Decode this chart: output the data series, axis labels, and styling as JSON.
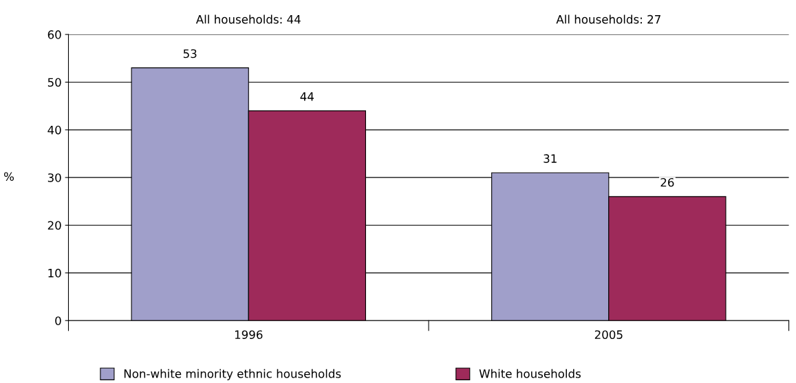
{
  "chart_data": {
    "type": "bar",
    "ylabel": "%",
    "categories": [
      "1996",
      "2005"
    ],
    "series": [
      {
        "name": "Non-white minority ethnic households",
        "color": "#a09fca",
        "values": [
          53,
          31
        ]
      },
      {
        "name": "White households",
        "color": "#9e2a5a",
        "values": [
          44,
          26
        ]
      }
    ],
    "annotations": [
      "All households: 44",
      "All households: 27"
    ],
    "ylim": [
      0,
      60
    ],
    "yticks": [
      0,
      10,
      20,
      30,
      40,
      50,
      60
    ],
    "grid": "y",
    "legend": "bottom",
    "data_labels": true
  }
}
